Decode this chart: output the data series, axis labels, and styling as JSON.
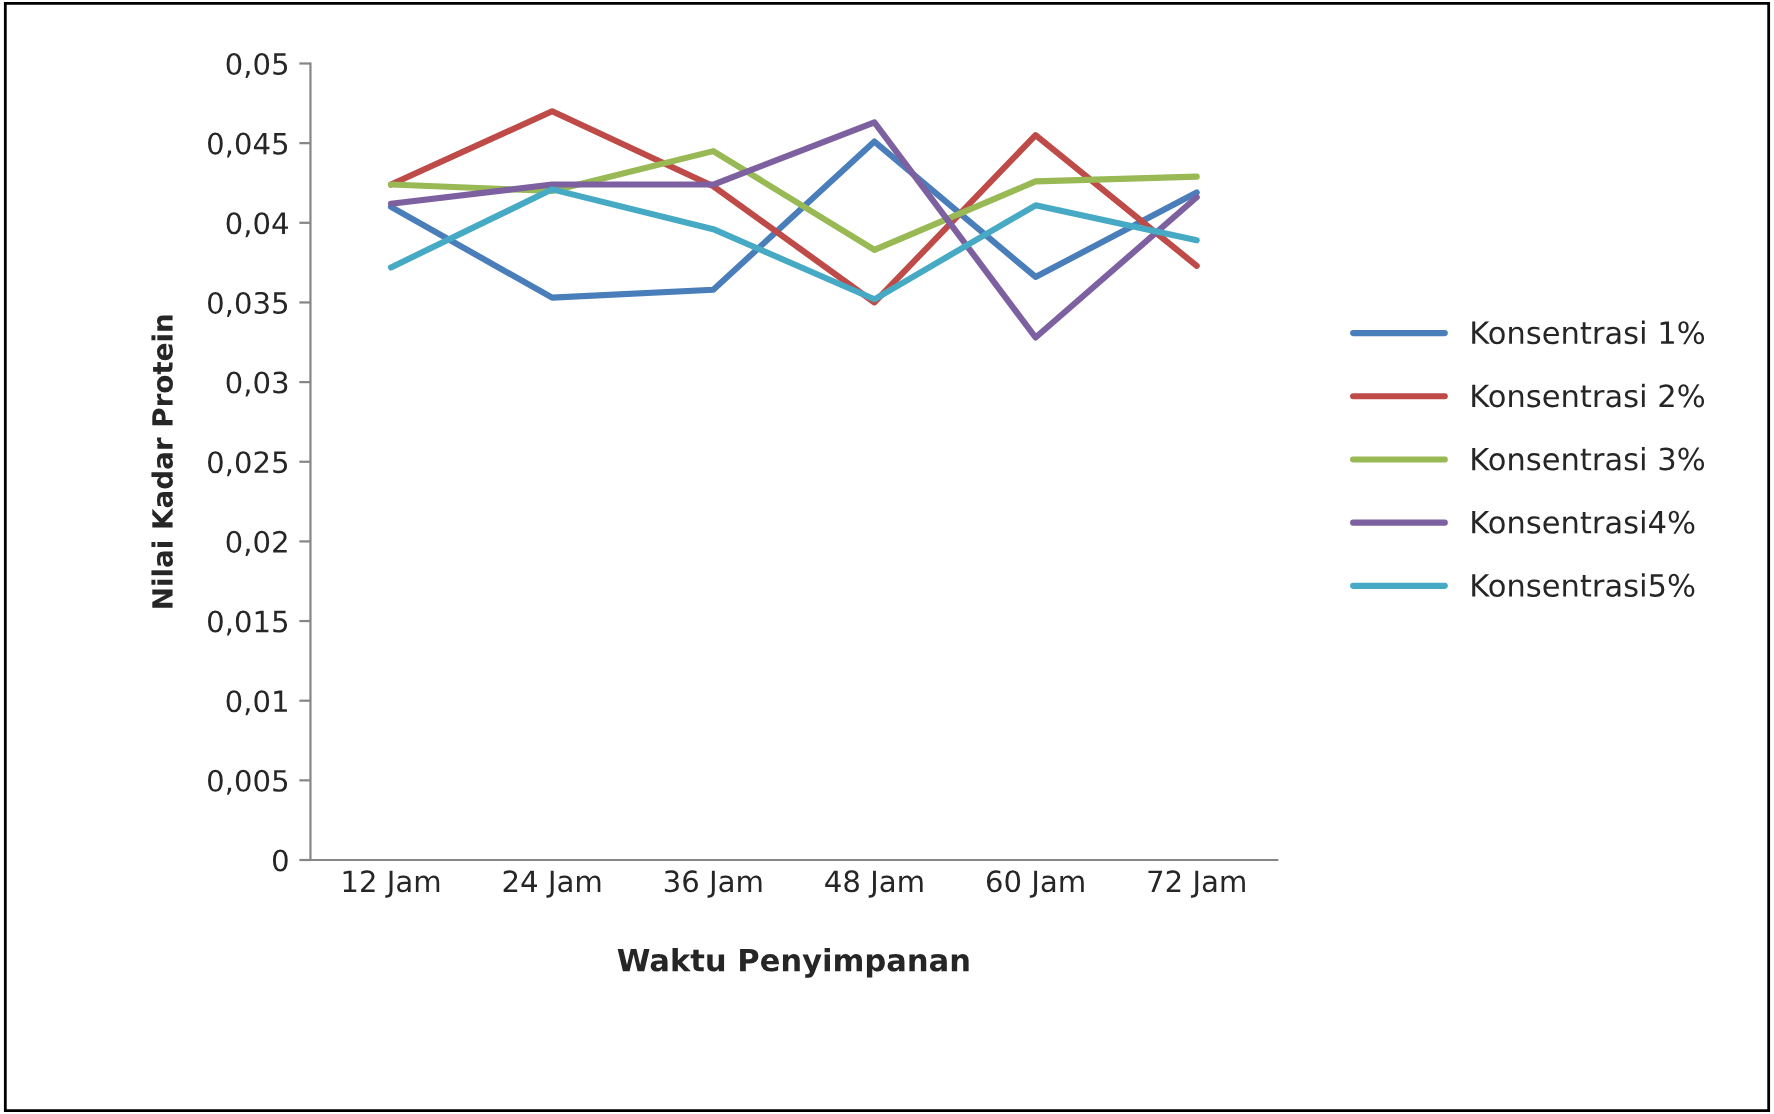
{
  "chart_data": {
    "type": "line",
    "xlabel": "Waktu Penyimpanan",
    "ylabel": "Nilai Kadar Protein",
    "categories": [
      "12 Jam",
      "24 Jam",
      "36 Jam",
      "48 Jam",
      "60 Jam",
      "72 Jam"
    ],
    "series": [
      {
        "name": "Konsentrasi 1%",
        "color": "#4a7ebb",
        "values": [
          0.041,
          0.0353,
          0.0358,
          0.0451,
          0.0366,
          0.0419
        ]
      },
      {
        "name": "Konsentrasi 2%",
        "color": "#be4b48",
        "values": [
          0.0424,
          0.047,
          0.0423,
          0.035,
          0.0455,
          0.0373
        ]
      },
      {
        "name": "Konsentrasi 3%",
        "color": "#98b954",
        "values": [
          0.0424,
          0.042,
          0.0445,
          0.0383,
          0.0426,
          0.0429
        ]
      },
      {
        "name": "Konsentrasi4%",
        "color": "#7d60a0",
        "values": [
          0.0412,
          0.0424,
          0.0424,
          0.0463,
          0.0328,
          0.0416
        ]
      },
      {
        "name": "Konsentrasi5%",
        "color": "#46aac5",
        "values": [
          0.0372,
          0.0421,
          0.0396,
          0.0352,
          0.0411,
          0.0389
        ]
      }
    ],
    "ylim": [
      0,
      0.05
    ],
    "yticks": [
      {
        "value": 0,
        "label": "0"
      },
      {
        "value": 0.005,
        "label": "0,005"
      },
      {
        "value": 0.01,
        "label": "0,01"
      },
      {
        "value": 0.015,
        "label": "0,015"
      },
      {
        "value": 0.02,
        "label": "0,02"
      },
      {
        "value": 0.025,
        "label": "0,025"
      },
      {
        "value": 0.03,
        "label": "0,03"
      },
      {
        "value": 0.035,
        "label": "0,035"
      },
      {
        "value": 0.04,
        "label": "0,04"
      },
      {
        "value": 0.045,
        "label": "0,045"
      },
      {
        "value": 0.05,
        "label": "0,05"
      }
    ],
    "grid": false,
    "legend": "right",
    "marker": "none",
    "line_style": "solid"
  }
}
